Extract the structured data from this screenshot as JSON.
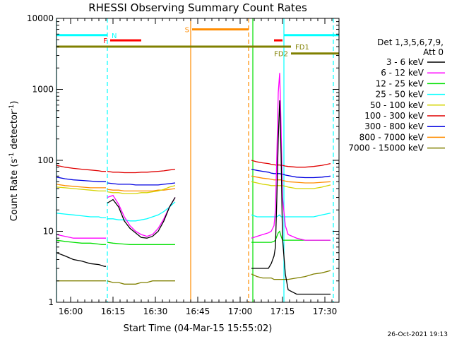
{
  "chart_data": {
    "type": "line",
    "title": "RHESSI Observing Summary Count Rates",
    "xlabel": "Start Time (04-Mar-15 15:55:02)",
    "ylabel_parts": [
      "Count Rate (s",
      "-1",
      " detector",
      "-1",
      ")"
    ],
    "yscale": "log",
    "ylim": [
      1,
      10000
    ],
    "y_ticks": [
      {
        "value": 1,
        "label": "1"
      },
      {
        "value": 10,
        "label": "10"
      },
      {
        "value": 100,
        "label": "100"
      },
      {
        "value": 1000,
        "label": "1000"
      },
      {
        "value": 10000,
        "label": "10000"
      }
    ],
    "xlim_min": [
      0,
      100
    ],
    "x_ticks": [
      {
        "min": 5,
        "label": "16:00"
      },
      {
        "min": 20,
        "label": "16:15"
      },
      {
        "min": 35,
        "label": "16:30"
      },
      {
        "min": 50,
        "label": "16:45"
      },
      {
        "min": 65,
        "label": "17:00"
      },
      {
        "min": 80,
        "label": "17:15"
      },
      {
        "min": 95,
        "label": "17:30"
      }
    ],
    "legend": {
      "header": [
        "Det 1,3,5,6,7,9,",
        "Att 0"
      ],
      "placement": "right"
    },
    "series": [
      {
        "name": "3 - 6 keV",
        "color": "#000000"
      },
      {
        "name": "6 - 12 keV",
        "color": "#ff00ff"
      },
      {
        "name": "12 - 25 keV",
        "color": "#00e000"
      },
      {
        "name": "25 - 50 keV",
        "color": "#00ffff"
      },
      {
        "name": "50 - 100 keV",
        "color": "#d4d400"
      },
      {
        "name": "100 - 300 keV",
        "color": "#e00000"
      },
      {
        "name": "300 - 800 keV",
        "color": "#0000e0"
      },
      {
        "name": "800 - 7000 keV",
        "color": "#ff8c00"
      },
      {
        "name": "7000 - 15000 keV",
        "color": "#808000"
      }
    ],
    "segments": [
      {
        "x": [
          0,
          3,
          6,
          9,
          12,
          15,
          16,
          17,
          17.5
        ],
        "y": {
          "3 - 6 keV": [
            5.0,
            4.5,
            4.0,
            3.8,
            3.5,
            3.4,
            3.3,
            3.2,
            3.2
          ],
          "6 - 12 keV": [
            9.0,
            8.5,
            8.0,
            8.0,
            8.0,
            8.0,
            8.0,
            8.0,
            8.0
          ],
          "12 - 25 keV": [
            7.5,
            7.2,
            7.0,
            6.8,
            6.8,
            6.6,
            6.5,
            6.5,
            6.5
          ],
          "25 - 50 keV": [
            18,
            17.5,
            17,
            16.5,
            16,
            16,
            15.5,
            15.5,
            15.5
          ],
          "50 - 100 keV": [
            42,
            41,
            40,
            39,
            38,
            37,
            37,
            37,
            37
          ],
          "100 - 300 keV": [
            85,
            80,
            77,
            75,
            73,
            71,
            70,
            70,
            70
          ],
          "300 - 800 keV": [
            58,
            55,
            53,
            52,
            51,
            50,
            50,
            50,
            50
          ],
          "800 - 7000 keV": [
            46,
            44,
            43,
            42,
            41,
            41,
            41,
            41,
            41
          ],
          "7000 - 15000 keV": [
            2.0,
            2.0,
            2.0,
            2.0,
            2.0,
            2.0,
            2.0,
            2.0,
            2.0
          ]
        }
      },
      {
        "x": [
          18,
          20,
          22,
          24,
          26,
          28,
          30,
          32,
          34,
          36,
          38,
          40,
          42
        ],
        "y": {
          "3 - 6 keV": [
            25,
            28,
            22,
            14,
            11,
            9.5,
            8.2,
            8.0,
            8.5,
            10,
            14,
            22,
            30
          ],
          "6 - 12 keV": [
            30,
            32,
            24,
            16,
            12,
            10,
            9.0,
            8.5,
            9.0,
            11,
            15,
            22,
            30
          ],
          "12 - 25 keV": [
            7.0,
            6.8,
            6.7,
            6.6,
            6.5,
            6.5,
            6.5,
            6.5,
            6.5,
            6.5,
            6.5,
            6.5,
            6.5
          ],
          "25 - 50 keV": [
            15,
            15,
            14.5,
            14.5,
            14,
            14,
            14.5,
            15,
            16,
            17,
            19,
            22,
            26
          ],
          "50 - 100 keV": [
            36,
            35,
            35,
            34,
            34,
            34,
            35,
            35,
            36,
            37,
            39,
            42,
            44
          ],
          "100 - 300 keV": [
            70,
            68,
            68,
            67,
            67,
            67,
            68,
            68,
            69,
            70,
            71,
            73,
            75
          ],
          "300 - 800 keV": [
            48,
            47,
            46,
            46,
            46,
            45,
            45,
            45,
            45,
            45,
            46,
            47,
            48
          ],
          "800 - 7000 keV": [
            39,
            38,
            38,
            37,
            37,
            37,
            37,
            37,
            37,
            38,
            38,
            39,
            40
          ],
          "7000 - 15000 keV": [
            2.0,
            1.9,
            1.9,
            1.8,
            1.8,
            1.8,
            1.9,
            1.9,
            2.0,
            2.0,
            2.0,
            2.0,
            2.0
          ]
        }
      },
      {
        "x": [
          69,
          71,
          73,
          75,
          76,
          77,
          77.5,
          78,
          78.5,
          79,
          79.5,
          80,
          81,
          82,
          85,
          88,
          91,
          94,
          97
        ],
        "y": {
          "3 - 6 keV": [
            3.0,
            3.0,
            3.0,
            3.0,
            3.5,
            4.5,
            6.0,
            30,
            200,
            700,
            120,
            8,
            2.5,
            1.5,
            1.3,
            1.3,
            1.3,
            1.3,
            1.3
          ],
          "6 - 12 keV": [
            8.0,
            8.5,
            9.0,
            9.5,
            10,
            12,
            20,
            120,
            900,
            1700,
            300,
            30,
            12,
            9,
            8.0,
            7.5,
            7.5,
            7.5,
            7.5
          ],
          "12 - 25 keV": [
            7.0,
            7.0,
            7.0,
            7.0,
            7.0,
            7.2,
            7.5,
            8.5,
            9.5,
            10,
            8.5,
            7.5,
            7.5,
            7.5,
            7.5,
            7.5,
            7.5,
            7.5,
            7.5
          ],
          "25 - 50 keV": [
            17,
            16,
            16,
            16,
            16,
            16,
            16,
            16,
            16.5,
            17,
            16,
            16,
            16,
            16,
            16,
            16,
            16,
            17,
            18
          ],
          "50 - 100 keV": [
            50,
            48,
            46,
            45,
            44,
            44,
            44,
            44,
            44,
            44,
            44,
            44,
            43,
            42,
            40,
            40,
            40,
            42,
            45
          ],
          "100 - 300 keV": [
            100,
            95,
            92,
            90,
            88,
            87,
            86,
            86,
            86,
            86,
            85,
            85,
            83,
            82,
            80,
            80,
            82,
            85,
            90
          ],
          "300 - 800 keV": [
            75,
            72,
            70,
            68,
            66,
            65,
            65,
            65,
            65,
            65,
            64,
            64,
            62,
            61,
            58,
            57,
            57,
            58,
            60
          ],
          "800 - 7000 keV": [
            60,
            58,
            56,
            55,
            54,
            53,
            53,
            53,
            53,
            53,
            53,
            52,
            51,
            50,
            49,
            48,
            48,
            49,
            50
          ],
          "7000 - 15000 keV": [
            2.5,
            2.3,
            2.2,
            2.2,
            2.2,
            2.1,
            2.1,
            2.1,
            2.1,
            2.1,
            2.1,
            2.1,
            2.1,
            2.1,
            2.2,
            2.3,
            2.5,
            2.6,
            2.8
          ]
        }
      }
    ],
    "attenuator_lines": [
      {
        "min": 0,
        "label": "",
        "color": "#00ffff",
        "style": "solid"
      },
      {
        "min": 18,
        "label": "",
        "color": "#00ffff",
        "style": "dashed"
      },
      {
        "min": 47.5,
        "label": "",
        "color": "#ff8c00",
        "style": "solid"
      },
      {
        "min": 68,
        "label": "",
        "color": "#ff8c00",
        "style": "dashed"
      },
      {
        "min": 69.5,
        "label": "",
        "color": "#00e000",
        "style": "solid"
      },
      {
        "min": 80.5,
        "label": "",
        "color": "#00ffff",
        "style": "solid"
      },
      {
        "min": 98,
        "label": "",
        "color": "#00ffff",
        "style": "dashed"
      }
    ],
    "flag_bars": [
      {
        "label": "N",
        "color": "#00ffff",
        "x0": 0,
        "x1": 18,
        "y": 5800,
        "label_at": "end"
      },
      {
        "label": "F",
        "color": "#ff0000",
        "x0": 19,
        "x1": 30,
        "y": 4900,
        "label_at": "start"
      },
      {
        "label": "S",
        "color": "#ff8c00",
        "x0": 48,
        "x1": 68,
        "y": 7000,
        "label_at": "start"
      },
      {
        "label": "",
        "color": "#ff0000",
        "x0": 77,
        "x1": 80,
        "y": 4900,
        "label_at": "none"
      },
      {
        "label": "",
        "color": "#00ffff",
        "x0": 80.5,
        "x1": 100,
        "y": 5800,
        "label_at": "none"
      },
      {
        "label": "FD1",
        "color": "#808000",
        "x0": 0,
        "x1": 83,
        "y": 4000,
        "label_at": "end"
      },
      {
        "label": "FD2",
        "color": "#808000",
        "x0": 83,
        "x1": 100,
        "y": 3200,
        "label_at": "start"
      }
    ]
  },
  "timestamp": "26-Oct-2021 19:13"
}
